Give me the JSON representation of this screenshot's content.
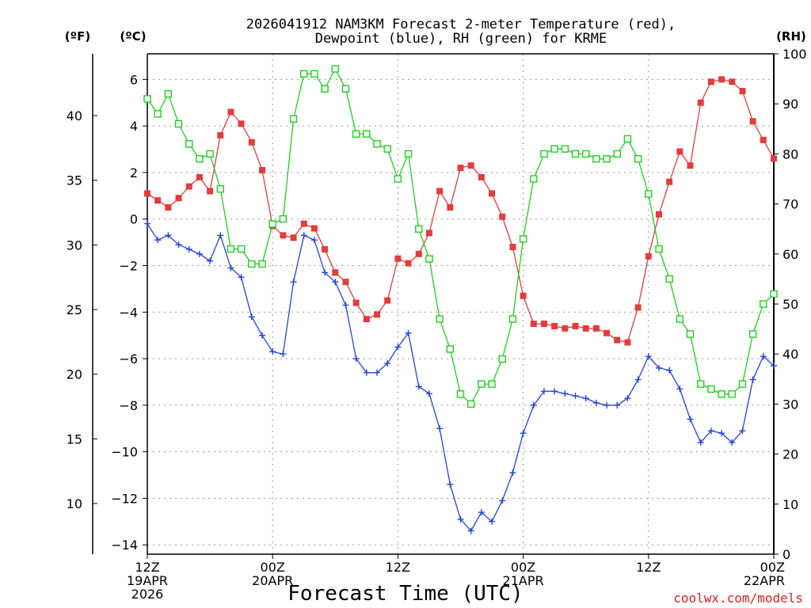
{
  "chart_data": {
    "type": "line",
    "title_line1": "2026041912 NAM3KM Forecast 2-meter Temperature (red),",
    "title_line2": "Dewpoint (blue), RH (green) for KRME",
    "xlabel": "Forecast Time (UTC)",
    "credit": "coolwx.com/models",
    "units": {
      "fahrenheit": "(ºF)",
      "celsius": "(ºC)",
      "rh": "(RH)"
    },
    "x_range_hours": [
      0,
      60
    ],
    "x_ticks": [
      {
        "hour": 0,
        "lines": [
          "12Z",
          "19APR",
          "2026"
        ]
      },
      {
        "hour": 12,
        "lines": [
          "00Z",
          "20APR"
        ]
      },
      {
        "hour": 24,
        "lines": [
          "12Z"
        ]
      },
      {
        "hour": 36,
        "lines": [
          "00Z",
          "21APR"
        ]
      },
      {
        "hour": 48,
        "lines": [
          "12Z"
        ]
      },
      {
        "hour": 60,
        "lines": [
          "00Z",
          "22APR"
        ]
      }
    ],
    "y_celsius": {
      "range": [
        -14.4,
        7.1
      ],
      "ticks": [
        -14,
        -12,
        -10,
        -8,
        -6,
        -4,
        -2,
        0,
        2,
        4,
        6
      ]
    },
    "y_fahrenheit": {
      "ticks": [
        10,
        15,
        20,
        25,
        30,
        35,
        40
      ]
    },
    "y_rh": {
      "range": [
        0,
        100
      ],
      "ticks": [
        0,
        10,
        20,
        30,
        40,
        50,
        60,
        70,
        80,
        90,
        100
      ]
    },
    "grid": true,
    "hours": [
      0,
      1,
      2,
      3,
      4,
      5,
      6,
      7,
      8,
      9,
      10,
      11,
      12,
      13,
      14,
      15,
      16,
      17,
      18,
      19,
      20,
      21,
      22,
      23,
      24,
      25,
      26,
      27,
      28,
      29,
      30,
      31,
      32,
      33,
      34,
      35,
      36,
      37,
      38,
      39,
      40,
      41,
      42,
      43,
      44,
      45,
      46,
      47,
      48,
      49,
      50,
      51,
      52,
      53,
      54,
      55,
      56,
      57,
      58,
      59,
      60
    ],
    "series": [
      {
        "name": "Temperature (°C)",
        "axis": "celsius",
        "color": "#e23c3c",
        "marker": "filled-square",
        "values": [
          1.1,
          0.8,
          0.5,
          0.9,
          1.4,
          1.8,
          1.2,
          3.6,
          4.6,
          4.1,
          3.3,
          2.1,
          -0.3,
          -0.7,
          -0.8,
          -0.2,
          -0.4,
          -1.3,
          -2.3,
          -2.7,
          -3.6,
          -4.3,
          -4.1,
          -3.5,
          -1.7,
          -1.9,
          -1.5,
          -0.6,
          1.2,
          0.5,
          2.2,
          2.3,
          1.8,
          1.1,
          0.1,
          -1.2,
          -3.3,
          -4.5,
          -4.5,
          -4.6,
          -4.7,
          -4.6,
          -4.7,
          -4.7,
          -4.9,
          -5.2,
          -5.3,
          -3.8,
          -1.6,
          0.2,
          1.6,
          2.9,
          2.3,
          5.0,
          5.9,
          6.0,
          5.9,
          5.5,
          4.2,
          3.4,
          2.6
        ]
      },
      {
        "name": "Dewpoint (°C)",
        "axis": "celsius",
        "color": "#2244dd",
        "marker": "plus",
        "values": [
          -0.2,
          -0.9,
          -0.7,
          -1.1,
          -1.3,
          -1.5,
          -1.8,
          -0.7,
          -2.1,
          -2.5,
          -4.2,
          -5.0,
          -5.7,
          -5.8,
          -2.7,
          -0.7,
          -0.9,
          -2.3,
          -2.7,
          -3.7,
          -6.0,
          -6.6,
          -6.6,
          -6.2,
          -5.5,
          -4.9,
          -7.2,
          -7.5,
          -9.0,
          -11.4,
          -12.9,
          -13.4,
          -12.6,
          -13.0,
          -12.1,
          -10.9,
          -9.2,
          -8.0,
          -7.4,
          -7.4,
          -7.5,
          -7.6,
          -7.7,
          -7.9,
          -8.0,
          -8.0,
          -7.7,
          -6.9,
          -5.9,
          -6.4,
          -6.5,
          -7.3,
          -8.6,
          -9.6,
          -9.1,
          -9.2,
          -9.6,
          -9.1,
          -6.9,
          -5.9,
          -6.3
        ]
      },
      {
        "name": "RH (%)",
        "axis": "rh",
        "color": "#1ed01e",
        "marker": "open-square",
        "values": [
          91,
          88,
          92,
          86,
          82,
          79,
          80,
          73,
          61,
          61,
          58,
          58,
          66,
          67,
          87,
          96,
          96,
          93,
          97,
          93,
          84,
          84,
          82,
          81,
          75,
          80,
          65,
          59,
          47,
          41,
          32,
          30,
          34,
          34,
          39,
          47,
          63,
          75,
          80,
          81,
          81,
          80,
          80,
          79,
          79,
          80,
          83,
          79,
          72,
          61,
          55,
          47,
          44,
          34,
          33,
          32,
          32,
          34,
          44,
          50,
          52
        ]
      }
    ]
  }
}
